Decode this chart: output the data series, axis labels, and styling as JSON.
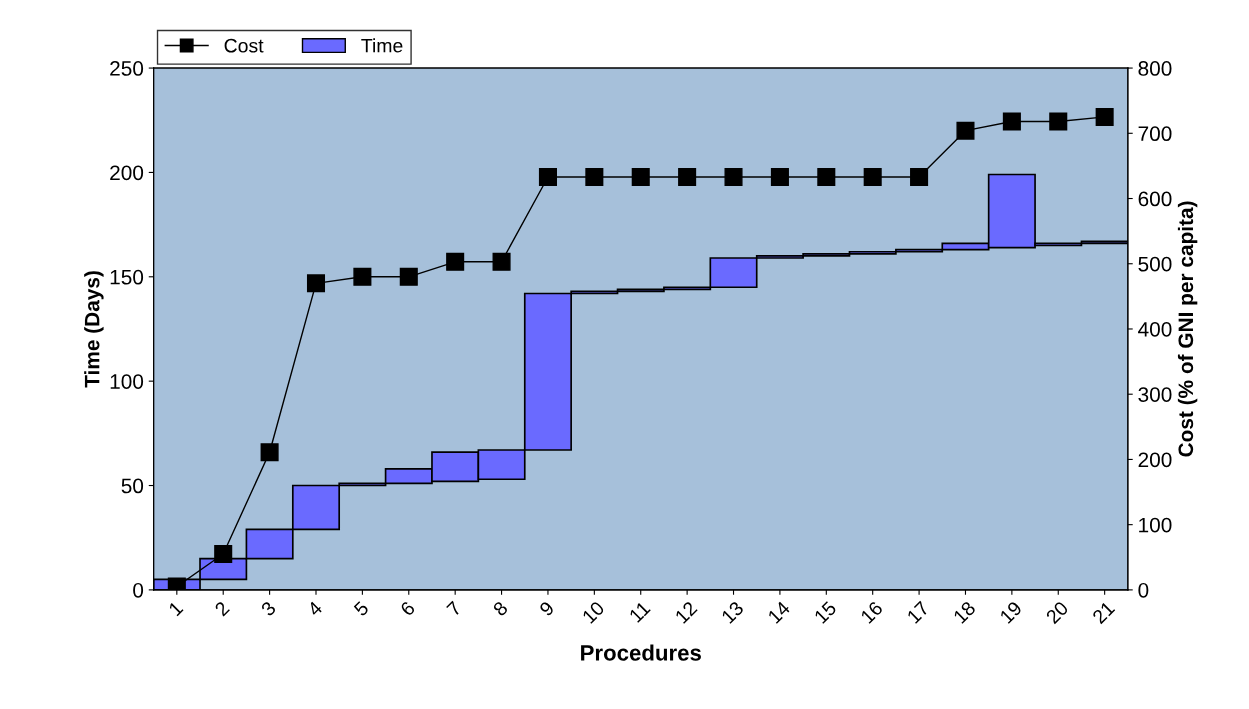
{
  "chart_data": {
    "type": "bar",
    "xlabel": "Procedures",
    "ylabel": "Time (Days)",
    "y2label": "Cost (% of GNI per capita)",
    "categories": [
      "1",
      "2",
      "3",
      "4",
      "5",
      "6",
      "7",
      "8",
      "9",
      "10",
      "11",
      "12",
      "13",
      "14",
      "15",
      "16",
      "17",
      "18",
      "19",
      "20",
      "21"
    ],
    "series": [
      {
        "name": "Cost",
        "type": "line",
        "axis": "y2",
        "color": "#000000",
        "marker": "square",
        "values": [
          5,
          55,
          211,
          470,
          480,
          480,
          503,
          503,
          633,
          633,
          633,
          633,
          633,
          633,
          633,
          633,
          633,
          704,
          718,
          718,
          725
        ]
      },
      {
        "name": "Time",
        "color": "#6a6aff",
        "base": [
          0,
          5,
          15,
          29,
          50,
          51,
          52,
          53,
          67,
          142,
          143,
          144,
          145,
          159,
          160,
          161,
          162,
          163,
          164,
          165,
          166
        ],
        "values": [
          5,
          10,
          14,
          21,
          1,
          7,
          14,
          14,
          75,
          1,
          1,
          1,
          14,
          1,
          1,
          1,
          1,
          3,
          35,
          1,
          1
        ]
      }
    ],
    "ylim": [
      0,
      250
    ],
    "yticks": [
      0,
      50,
      100,
      150,
      200,
      250
    ],
    "y2lim": [
      0,
      800
    ],
    "y2ticks": [
      0,
      100,
      200,
      300,
      400,
      500,
      600,
      700,
      800
    ],
    "grid": false,
    "legend": "top left"
  }
}
